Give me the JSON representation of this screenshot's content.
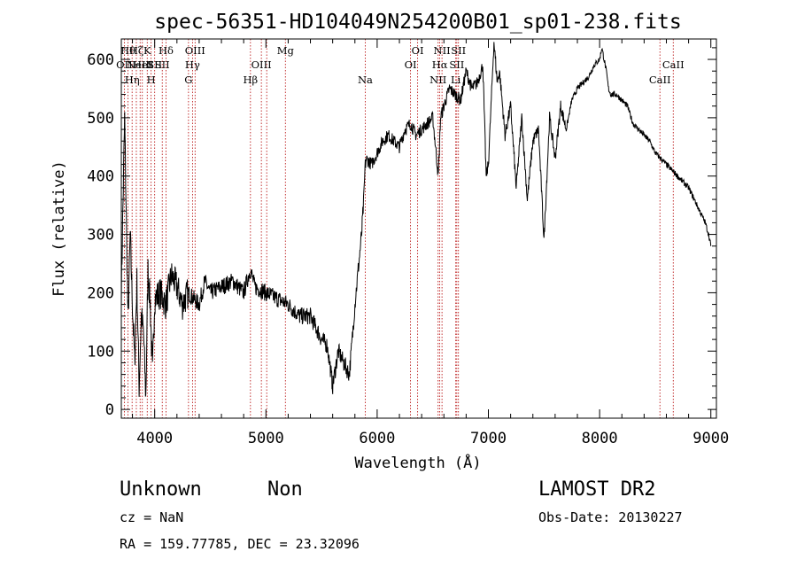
{
  "chart_data": {
    "type": "line",
    "title": "spec-56351-HD104049N254200B01_sp01-238.fits",
    "xlabel": "Wavelength (Å)",
    "ylabel": "Flux (relative)",
    "xlim": [
      3700,
      9050
    ],
    "ylim": [
      -15,
      635
    ],
    "x_ticks": [
      4000,
      5000,
      6000,
      7000,
      8000,
      9000
    ],
    "y_ticks": [
      0,
      100,
      200,
      300,
      400,
      500,
      600
    ],
    "grid": false,
    "series": [
      {
        "x": [
          3700,
          3730,
          3760,
          3780,
          3800,
          3820,
          3840,
          3860,
          3880,
          3900,
          3920,
          3940,
          3960,
          3980,
          4000,
          4050,
          4100,
          4150,
          4200,
          4250,
          4300,
          4350,
          4400,
          4450,
          4500,
          4600,
          4700,
          4800,
          4860,
          4900,
          5000,
          5100,
          5200,
          5300,
          5400,
          5450,
          5500,
          5550,
          5580,
          5600,
          5650,
          5700,
          5750,
          5780,
          5800,
          5830,
          5860,
          5880,
          5890,
          5900,
          5950,
          6000,
          6050,
          6100,
          6150,
          6200,
          6250,
          6300,
          6350,
          6400,
          6450,
          6500,
          6550,
          6570,
          6600,
          6650,
          6700,
          6750,
          6800,
          6850,
          6900,
          6950,
          6980,
          7000,
          7050,
          7080,
          7100,
          7150,
          7200,
          7250,
          7300,
          7350,
          7400,
          7450,
          7500,
          7550,
          7600,
          7650,
          7700,
          7750,
          7800,
          7850,
          7900,
          7950,
          8000,
          8020,
          8040,
          8060,
          8080,
          8100,
          8150,
          8200,
          8250,
          8300,
          8350,
          8400,
          8450,
          8500,
          8550,
          8600,
          8650,
          8700,
          8750,
          8800,
          8850,
          8900,
          8950,
          8980,
          9000
        ],
        "y": [
          200,
          500,
          150,
          300,
          180,
          80,
          220,
          40,
          160,
          130,
          20,
          240,
          180,
          60,
          190,
          200,
          180,
          230,
          210,
          180,
          200,
          190,
          180,
          220,
          200,
          210,
          220,
          200,
          240,
          210,
          200,
          190,
          180,
          160,
          160,
          140,
          120,
          110,
          70,
          40,
          100,
          80,
          60,
          130,
          180,
          240,
          300,
          360,
          410,
          430,
          420,
          440,
          460,
          470,
          460,
          450,
          480,
          490,
          470,
          480,
          490,
          500,
          400,
          500,
          520,
          550,
          540,
          530,
          580,
          550,
          560,
          590,
          400,
          420,
          630,
          560,
          580,
          470,
          520,
          380,
          500,
          360,
          460,
          480,
          290,
          500,
          430,
          520,
          480,
          530,
          550,
          560,
          570,
          590,
          600,
          620,
          600,
          580,
          550,
          540,
          540,
          530,
          520,
          490,
          480,
          470,
          460,
          440,
          430,
          420,
          410,
          400,
          390,
          380,
          360,
          340,
          320,
          300,
          280
        ]
      }
    ],
    "lines": [
      {
        "x": 3727,
        "label": "OII",
        "row": 2
      },
      {
        "x": 3760,
        "label": "Hθ",
        "row": 1
      },
      {
        "x": 3797,
        "label": "Hη",
        "row": 3
      },
      {
        "x": 3835,
        "label": "Hζ",
        "row": 1
      },
      {
        "x": 3869,
        "label": "NeIII",
        "row": 2
      },
      {
        "x": 3889,
        "label": "HeI",
        "row": 2
      },
      {
        "x": 3933,
        "label": "K",
        "row": 1
      },
      {
        "x": 3968,
        "label": "H",
        "row": 3
      },
      {
        "x": 4000,
        "label": "SII",
        "row": 2
      },
      {
        "x": 4068,
        "label": "SII",
        "row": 2
      },
      {
        "x": 4102,
        "label": "Hδ",
        "row": 1
      },
      {
        "x": 4304,
        "label": "G",
        "row": 3
      },
      {
        "x": 4340,
        "label": "Hγ",
        "row": 2
      },
      {
        "x": 4363,
        "label": "OIII",
        "row": 1
      },
      {
        "x": 4861,
        "label": "Hβ",
        "row": 3
      },
      {
        "x": 4959,
        "label": "OIII",
        "row": 2
      },
      {
        "x": 5007,
        "label": "",
        "row": 0
      },
      {
        "x": 5175,
        "label": "Mg",
        "row": 1
      },
      {
        "x": 5893,
        "label": "Na",
        "row": 3
      },
      {
        "x": 6300,
        "label": "OI",
        "row": 2
      },
      {
        "x": 6364,
        "label": "OI",
        "row": 1
      },
      {
        "x": 6548,
        "label": "NII",
        "row": 3
      },
      {
        "x": 6563,
        "label": "Hα",
        "row": 2
      },
      {
        "x": 6583,
        "label": "NII",
        "row": 1
      },
      {
        "x": 6716,
        "label": "SII",
        "row": 2
      },
      {
        "x": 6707,
        "label": "Li",
        "row": 3
      },
      {
        "x": 6731,
        "label": "SII",
        "row": 1
      },
      {
        "x": 8542,
        "label": "CaII",
        "row": 3
      },
      {
        "x": 8662,
        "label": "CaII",
        "row": 2
      }
    ]
  },
  "info": {
    "object_class": "Unknown",
    "subclass": "Non",
    "survey": "LAMOST DR2",
    "cz": "cz = NaN",
    "obs_date": "Obs-Date: 20130227",
    "coords": "RA = 159.77785, DEC =  23.32096"
  }
}
